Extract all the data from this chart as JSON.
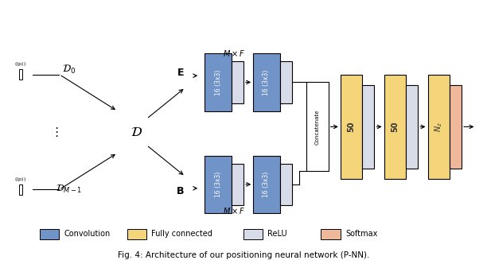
{
  "fig_width": 6.12,
  "fig_height": 3.32,
  "dpi": 100,
  "bg_color": "#ffffff",
  "conv_color": "#7094c8",
  "relu_color": "#d8dce8",
  "fc_color": "#f5d57a",
  "softmax_color": "#f0b89a",
  "concat_color": "#ffffff",
  "text_color": "#222222",
  "caption": "Fig. 4: Architecture of our positioning neural network (P-NN).",
  "legend_items": [
    {
      "label": "Convolution",
      "color": "#7094c8"
    },
    {
      "label": "Fully connected",
      "color": "#f5d57a"
    },
    {
      "label": "ReLU",
      "color": "#d8dce8"
    },
    {
      "label": "Softmax",
      "color": "#f0b89a"
    }
  ]
}
